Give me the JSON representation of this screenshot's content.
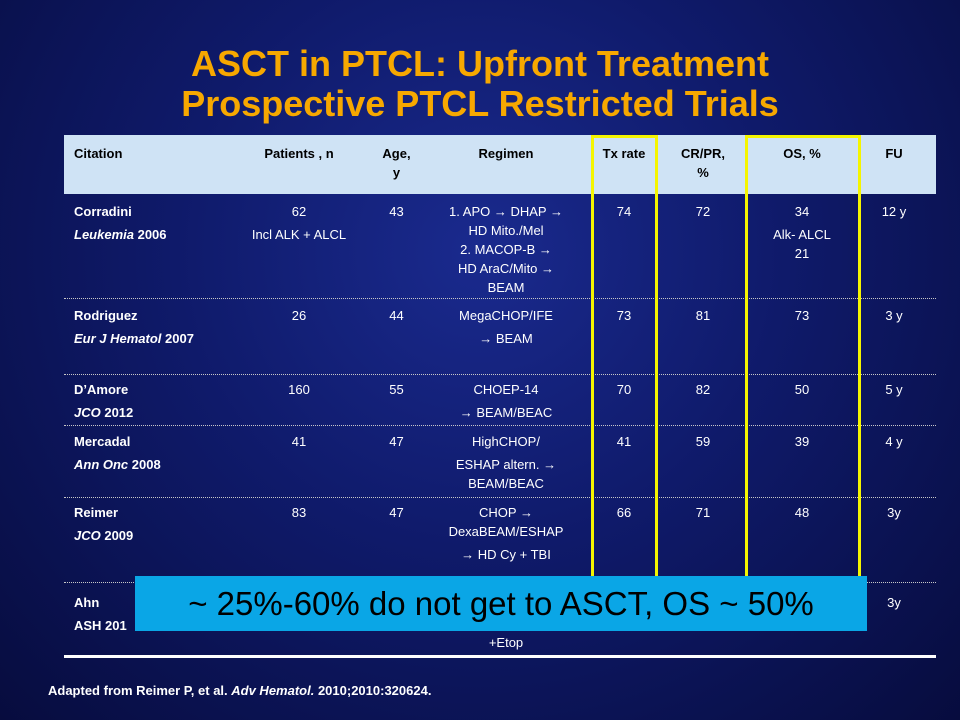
{
  "title_line1": "ASCT in PTCL: Upfront Treatment",
  "title_line2": "Prospective PTCL Restricted Trials",
  "headers": {
    "citation": "Citation",
    "patients": "Patients , n",
    "age_l1": "Age,",
    "age_l2": "y",
    "regimen": "Regimen",
    "tx_rate": "Tx rate",
    "crpr_l1": "CR/PR,",
    "crpr_l2": "%",
    "os": "OS, %",
    "fu": "FU"
  },
  "rows": [
    {
      "author": "Corradini",
      "journal": "Leukemia",
      "year": " 2006",
      "patients": "62",
      "patients_note": "Incl ALK + ALCL",
      "age": "43",
      "regimen": [
        "1. APO → DHAP →",
        "HD Mito./Mel",
        "2. MACOP-B →",
        "HD AraC/Mito →",
        "BEAM"
      ],
      "tx_rate": "74",
      "crpr": "72",
      "os": "34",
      "os_note": [
        "Alk- ALCL",
        "21"
      ],
      "fu": "12 y"
    },
    {
      "author": "Rodriguez",
      "journal": "Eur J Hematol",
      "year": " 2007",
      "patients": "26",
      "patients_note": "",
      "age": "44",
      "regimen": [
        "MegaCHOP/IFE",
        "→ BEAM"
      ],
      "tx_rate": "73",
      "crpr": "81",
      "os": "73",
      "os_note": [],
      "fu": "3 y"
    },
    {
      "author": "D’Amore",
      "journal": "JCO",
      "year": " 2012",
      "patients": "160",
      "patients_note": "",
      "age": "55",
      "regimen": [
        "CHOEP-14",
        "→ BEAM/BEAC"
      ],
      "tx_rate": "70",
      "crpr": "82",
      "os": "50",
      "os_note": [],
      "fu": "5 y"
    },
    {
      "author": "Mercadal",
      "journal": "Ann Onc",
      "year": " 2008",
      "patients": "41",
      "patients_note": "",
      "age": "47",
      "regimen": [
        "HighCHOP/",
        "ESHAP altern. →",
        "BEAM/BEAC"
      ],
      "tx_rate": "41",
      "crpr": "59",
      "os": "39",
      "os_note": [],
      "fu": "4 y"
    },
    {
      "author": "Reimer",
      "journal": "JCO",
      "year": " 2009",
      "patients": "83",
      "patients_note": "",
      "age": "47",
      "regimen": [
        "CHOP →",
        "DexaBEAM/ESHAP",
        "→ HD Cy + TBI"
      ],
      "tx_rate": "66",
      "crpr": "71",
      "os": "48",
      "os_note": [],
      "fu": "3y"
    },
    {
      "author": "Ahn",
      "journal": "",
      "year": "ASH 201",
      "patients": "",
      "patients_note": "",
      "age": "",
      "regimen": [
        "+Etop"
      ],
      "tx_rate": "",
      "crpr": "",
      "os": "",
      "os_note": [],
      "fu": "3y"
    }
  ],
  "callout": "~ 25%-60% do not get to ASCT, OS ~ 50%",
  "footer_prefix": "Adapted from Reimer  P, et al. ",
  "footer_journal": "Adv Hematol.",
  "footer_suffix": " 2010;2010:320624.",
  "colors": {
    "title": "#f7a800",
    "header_bg": "#cfe3f5",
    "highlight": "#f5f500",
    "callout_bg": "#0aa6e6"
  }
}
